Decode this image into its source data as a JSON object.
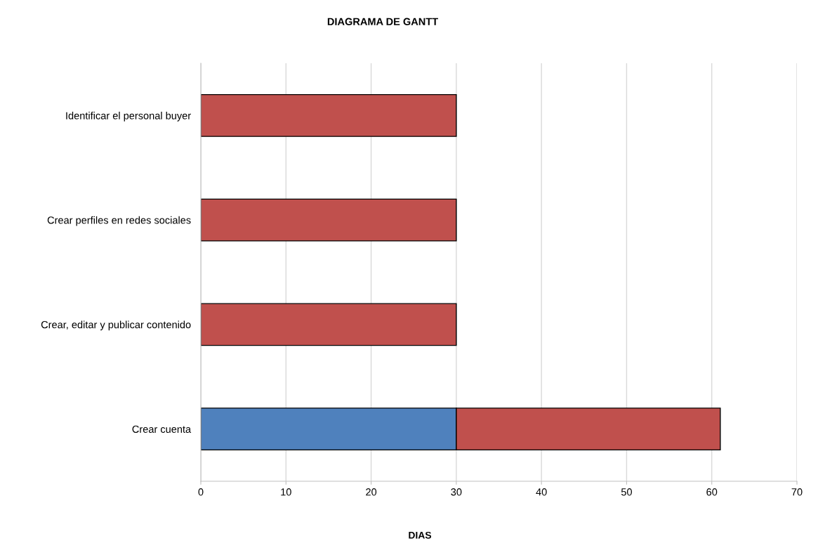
{
  "chart_data": {
    "type": "bar",
    "orientation": "horizontal",
    "stacked": true,
    "title": "DIAGRAMA DE GANTT",
    "xlabel": "DIAS",
    "categories": [
      "Identificar el personal buyer",
      "Crear perfiles en redes sociales",
      "Crear, editar y publicar contenido",
      "Crear cuenta"
    ],
    "series": [
      {
        "color": "#4f81bd",
        "values": [
          null,
          null,
          null,
          30
        ]
      },
      {
        "color": "#c0504d",
        "values": [
          30,
          30,
          30,
          31
        ]
      }
    ],
    "xlim": [
      0,
      70
    ],
    "xticks": [
      0,
      10,
      20,
      30,
      40,
      50,
      60,
      70
    ],
    "grid": "x",
    "legend": false
  }
}
